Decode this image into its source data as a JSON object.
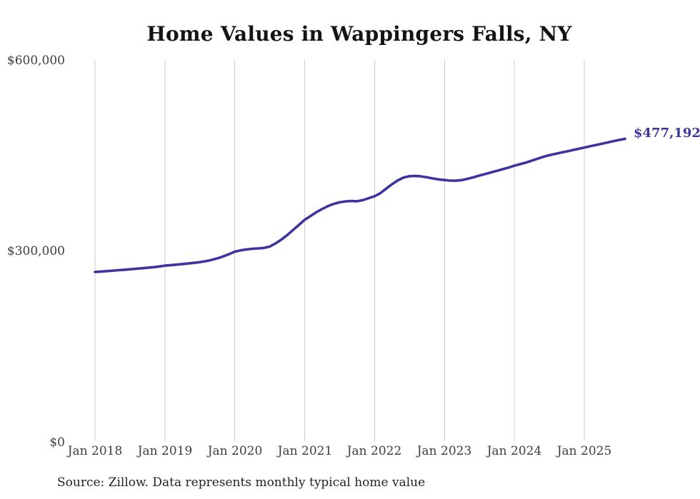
{
  "page": {
    "background_color": "#ffffff"
  },
  "chart_data": {
    "type": "line",
    "title": "Home Values in Wappingers Falls, NY",
    "xlabel": "",
    "ylabel": "",
    "x_start": "Jan 2018",
    "x_end": "Aug 2025",
    "frequency": "monthly",
    "x_tick_labels": [
      "Jan 2018",
      "Jan 2019",
      "Jan 2020",
      "Jan 2021",
      "Jan 2022",
      "Jan 2023",
      "Jan 2024",
      "Jan 2025"
    ],
    "y_tick_labels": [
      "$0",
      "$300,000",
      "$600,000"
    ],
    "y_tick_values": [
      0,
      300000,
      600000
    ],
    "ylim": [
      0,
      600000
    ],
    "grid": "vertical-only",
    "legend_position": "none",
    "line_color": "#3c359e",
    "gridline_color": "#cccccc",
    "end_label": "$477,192",
    "last_value": 477192,
    "series": [
      {
        "name": "Monthly typical home value",
        "values": [
          268000,
          268700,
          269400,
          270100,
          270800,
          271500,
          272300,
          273100,
          273900,
          274700,
          275600,
          276700,
          278000,
          278800,
          279600,
          280500,
          281400,
          282400,
          283500,
          285000,
          287000,
          289500,
          292500,
          296000,
          300000,
          302000,
          303500,
          304500,
          305000,
          305800,
          308000,
          313000,
          319000,
          326000,
          334000,
          342000,
          350000,
          356000,
          362000,
          367000,
          371500,
          375000,
          377500,
          379000,
          379500,
          379200,
          381000,
          384000,
          387000,
          392000,
          399000,
          406000,
          412000,
          416500,
          418500,
          419000,
          418200,
          416800,
          415000,
          413500,
          412500,
          411600,
          411500,
          412500,
          414500,
          417000,
          419500,
          422000,
          424500,
          427000,
          429500,
          432000,
          435000,
          437500,
          440000,
          443000,
          446000,
          449000,
          451500,
          453500,
          455500,
          457500,
          459500,
          461500,
          463500,
          465500,
          467500,
          469500,
          471500,
          473500,
          475500,
          477192
        ]
      }
    ]
  },
  "source": {
    "text": "Source: Zillow. Data represents monthly typical home value"
  }
}
